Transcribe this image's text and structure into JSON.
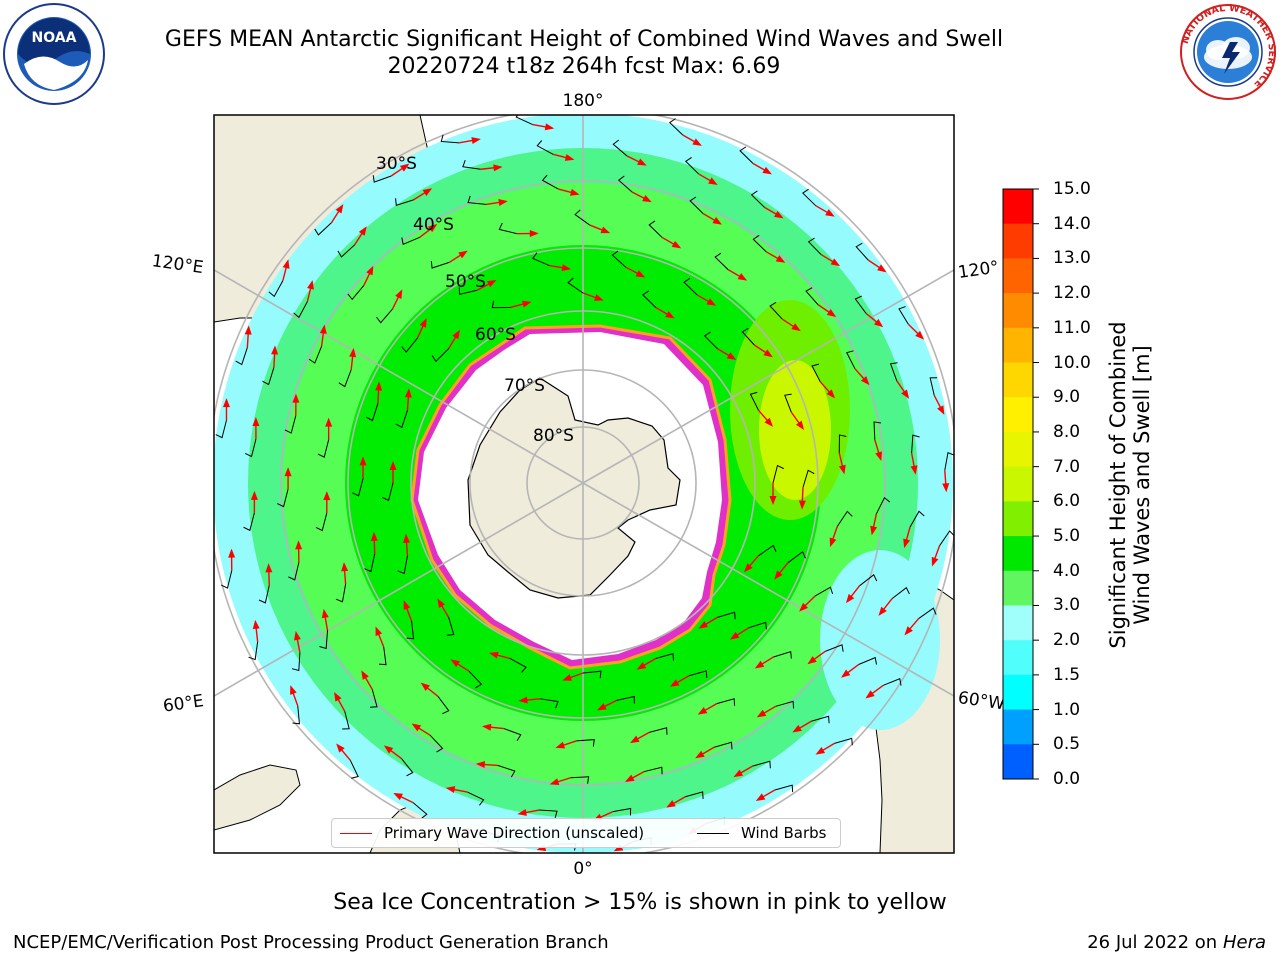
{
  "title": {
    "line1": "GEFS MEAN Antarctic Significant Height of Combined Wind Waves and Swell",
    "line2": "20220724 t18z 264h fcst   Max: 6.69"
  },
  "map": {
    "projection": "south-polar-stereographic",
    "longitude_labels": {
      "top": "180°",
      "bottom": "0°",
      "upper_left": "120°E",
      "lower_left": "60°E",
      "upper_right": "120°",
      "lower_right": "60°W"
    },
    "latitude_labels": [
      "30°S",
      "40°S",
      "50°S",
      "60°S",
      "70°S",
      "80°S"
    ],
    "colors": {
      "land": "#efecdc",
      "coast": "#000000",
      "grid": "#b5b5b5",
      "sea_ice_edge": "#e030c8",
      "sea_ice_fringe": "#ffa020",
      "wave_arrow": "#ff0000",
      "wind_barb": "#000000"
    },
    "wave_field_colors": {
      "under_2m": "#95fbfd",
      "2_to_3m": "#4df58b",
      "3_to_4m": "#55fd55",
      "4_to_5m": "#00ec00",
      "5_to_6m": "#6fef00",
      "6_to_7m": "#c9f700"
    }
  },
  "colorbar": {
    "label_line1": "Significant Height of Combined",
    "label_line2": "Wind Waves and Swell [m]",
    "ticks": [
      "15.0",
      "14.0",
      "13.0",
      "12.0",
      "11.0",
      "10.0",
      "9.0",
      "8.0",
      "7.0",
      "6.0",
      "5.0",
      "4.0",
      "3.0",
      "2.0",
      "1.5",
      "1.0",
      "0.5",
      "0.0"
    ],
    "colors": [
      "#ff0000",
      "#ff3c00",
      "#ff6400",
      "#ff8c00",
      "#ffb400",
      "#ffd700",
      "#fff000",
      "#e8f500",
      "#c8f700",
      "#80f000",
      "#00e800",
      "#60f660",
      "#a0fffb",
      "#50fffb",
      "#00ffff",
      "#00a0ff",
      "#0060ff",
      "#0000ff"
    ]
  },
  "legend": {
    "wave_label": "Primary Wave Direction (unscaled)",
    "barb_label": "Wind Barbs"
  },
  "caption": "Sea Ice Concentration > 15% is shown in pink to yellow",
  "footer": {
    "left": "NCEP/EMC/Verification Post Processing Product Generation Branch",
    "date": "26 Jul 2022 on ",
    "machine": "Hera"
  },
  "logos": {
    "noaa_text": "NOAA",
    "nws_ring_text": "NATIONAL WEATHER SERVICE"
  }
}
